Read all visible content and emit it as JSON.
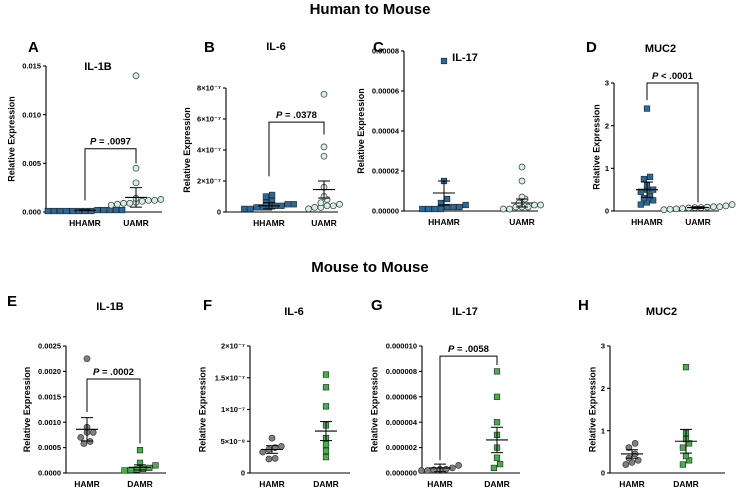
{
  "sections": [
    {
      "title": "Human to Mouse"
    },
    {
      "title": "Mouse to Mouse"
    }
  ],
  "colors": {
    "blue": "#2a6a9a",
    "mint": "#d4f0e6",
    "gray": "#808080",
    "green": "#44b04a",
    "mean_line": "#000000"
  },
  "chart_data": [
    {
      "type": "scatter",
      "panel": "A",
      "title": "IL-1B",
      "ylabel": "Relative Expression",
      "ylim": [
        0,
        0.015
      ],
      "yticks": [
        0,
        0.005,
        0.01,
        0.015
      ],
      "ytick_labels": [
        "0.000",
        "0.005",
        "0.010",
        "0.015"
      ],
      "categories": [
        "HHAMR",
        "UAMR"
      ],
      "series": [
        {
          "name": "HHAMR",
          "marker": "square",
          "color": "#2a6a9a",
          "values": [
            0.0001,
            0.0001,
            0.0002,
            0.0001,
            0.0002,
            0.0001,
            0.0002,
            0.0001,
            0.0001,
            0.0002,
            0.0001,
            0.0002,
            0.0001
          ],
          "mean": 0.00018,
          "sem": 4e-05
        },
        {
          "name": "UAMR",
          "marker": "circle",
          "color": "#d4f0e6",
          "values": [
            0.014,
            0.0045,
            0.003,
            0.0012,
            0.0014,
            0.0008,
            0.0009,
            0.001,
            0.0011,
            0.0012,
            0.0013,
            0.0007,
            0.0009
          ],
          "mean": 0.0015,
          "sem": 0.001
        }
      ],
      "annotation": "P = .0097",
      "bracket_y": 0.0065,
      "bracket_left_y": 0.0012,
      "bracket_right_y": 0.005
    },
    {
      "type": "scatter",
      "panel": "B",
      "title": "IL-6",
      "ylabel": "Relative Expression",
      "ylim": [
        0,
        8e-07
      ],
      "yticks": [
        0,
        2e-07,
        4e-07,
        6e-07,
        8e-07
      ],
      "ytick_labels": [
        "0",
        "2×10⁻⁷",
        "4×10⁻⁷",
        "6×10⁻⁷",
        "8×10⁻⁷"
      ],
      "categories": [
        "HHAMR",
        "UAMR"
      ],
      "series": [
        {
          "name": "HHAMR",
          "marker": "square",
          "color": "#2a6a9a",
          "values": [
            1e-07,
            1.1e-07,
            7e-08,
            6e-08,
            5e-08,
            4e-08,
            3e-08,
            4e-08,
            3e-08,
            2e-08,
            3e-08,
            2e-08,
            5e-08
          ],
          "mean": 4e-08,
          "sem": 2e-08
        },
        {
          "name": "UAMR",
          "marker": "circle",
          "color": "#d4f0e6",
          "values": [
            7.6e-07,
            4.2e-07,
            3.6e-07,
            1.6e-07,
            1e-07,
            8e-08,
            6e-08,
            4e-08,
            3e-08,
            2e-08,
            5e-08,
            4e-08,
            3e-08
          ],
          "mean": 1.45e-07,
          "sem": 5.5e-08
        }
      ],
      "annotation": "P = .0378",
      "bracket_y": 5.8e-07,
      "bracket_left_y": 2.3e-07,
      "bracket_right_y": 5e-07
    },
    {
      "type": "scatter",
      "panel": "C",
      "title": "IL-17",
      "ylabel": "Relative Expression",
      "ylim": [
        0,
        8e-05
      ],
      "yticks": [
        0,
        2e-05,
        4e-05,
        6e-05,
        8e-05
      ],
      "ytick_labels": [
        "0.00000",
        "0.00002",
        "0.00004",
        "0.00006",
        "0.00008"
      ],
      "categories": [
        "HHAMR",
        "UAMR"
      ],
      "series": [
        {
          "name": "HHAMR",
          "marker": "square",
          "color": "#2a6a9a",
          "values": [
            7.5e-05,
            1.5e-05,
            6e-06,
            4e-06,
            3e-06,
            2e-06,
            2e-06,
            1e-06,
            1e-06,
            2e-06,
            1e-06,
            1e-06
          ],
          "mean": 9e-06,
          "sem": 6e-06
        },
        {
          "name": "UAMR",
          "marker": "circle",
          "color": "#d4f0e6",
          "values": [
            2.2e-05,
            1.5e-05,
            7e-06,
            6e-06,
            4e-06,
            3e-06,
            2e-06,
            2e-06,
            1e-06,
            3e-06,
            2e-06,
            1e-06
          ],
          "mean": 4e-06,
          "sem": 2e-06
        }
      ]
    },
    {
      "type": "scatter",
      "panel": "D",
      "title": "MUC2",
      "ylabel": "Relative Expression",
      "ylim": [
        0,
        3
      ],
      "yticks": [
        0,
        1,
        2,
        3
      ],
      "ytick_labels": [
        "0",
        "1",
        "2",
        "3"
      ],
      "categories": [
        "HHAMR",
        "UAMR"
      ],
      "series": [
        {
          "name": "HHAMR",
          "marker": "square",
          "color": "#2a6a9a",
          "values": [
            2.4,
            0.8,
            0.75,
            0.6,
            0.5,
            0.45,
            0.35,
            0.3,
            0.25,
            0.2,
            0.15,
            0.5
          ],
          "mean": 0.5,
          "sem": 0.18
        },
        {
          "name": "UAMR",
          "marker": "circle",
          "color": "#d4f0e6",
          "values": [
            0.15,
            0.12,
            0.1,
            0.09,
            0.08,
            0.07,
            0.06,
            0.05,
            0.04,
            0.03,
            0.1,
            0.08
          ],
          "mean": 0.08,
          "sem": 0.02
        }
      ],
      "annotation": "P < .0001",
      "bracket_y": 3.0,
      "bracket_left_y": 2.6,
      "bracket_right_y": 0.2
    },
    {
      "type": "scatter",
      "panel": "E",
      "title": "IL-1B",
      "ylabel": "Relative Expression",
      "ylim": [
        0,
        0.0025
      ],
      "yticks": [
        0,
        0.0005,
        0.001,
        0.0015,
        0.002,
        0.0025
      ],
      "ytick_labels": [
        "0.0000",
        "0.0005",
        "0.0010",
        "0.0015",
        "0.0020",
        "0.0025"
      ],
      "categories": [
        "HAMR",
        "DAMR"
      ],
      "series": [
        {
          "name": "HAMR",
          "marker": "circle",
          "color": "#808080",
          "values": [
            0.00225,
            0.0009,
            0.0008,
            0.0008,
            0.0007,
            0.00062,
            0.00058
          ],
          "mean": 0.00086,
          "sem": 0.00023
        },
        {
          "name": "DAMR",
          "marker": "square",
          "color": "#44b04a",
          "values": [
            0.00045,
            0.0002,
            0.00015,
            0.0001,
            8e-05,
            7e-05,
            6e-05,
            5e-05
          ],
          "mean": 0.00011,
          "sem": 5e-05
        }
      ],
      "annotation": "P = .0002",
      "bracket_y": 0.00185,
      "bracket_left_y": 0.0012,
      "bracket_right_y": 0.00058
    },
    {
      "type": "scatter",
      "panel": "F",
      "title": "IL-6",
      "ylabel": "Relative Expression",
      "ylim": [
        0,
        2e-07
      ],
      "yticks": [
        0,
        5e-08,
        1e-07,
        1.5e-07,
        2e-07
      ],
      "ytick_labels": [
        "0",
        "5×10⁻⁸",
        "1×10⁻⁷",
        "1.5×10⁻⁷",
        "2×10⁻⁷"
      ],
      "categories": [
        "HAMR",
        "DAMR"
      ],
      "series": [
        {
          "name": "HAMR",
          "marker": "circle",
          "color": "#808080",
          "values": [
            5.5e-08,
            4.2e-08,
            4e-08,
            3.7e-08,
            3.3e-08,
            2.3e-08,
            2.2e-08
          ],
          "mean": 3.7e-08,
          "sem": 6e-09
        },
        {
          "name": "DAMR",
          "marker": "square",
          "color": "#44b04a",
          "values": [
            1.55e-07,
            1.35e-07,
            1.05e-07,
            7.5e-08,
            5.5e-08,
            4.5e-08,
            3.5e-08,
            2.5e-08
          ],
          "mean": 6.6e-08,
          "sem": 1.5e-08
        }
      ]
    },
    {
      "type": "scatter",
      "panel": "G",
      "title": "IL-17",
      "ylabel": "Relative Expression",
      "ylim": [
        0,
        1e-05
      ],
      "yticks": [
        0,
        2e-06,
        4e-06,
        6e-06,
        8e-06,
        1e-05
      ],
      "ytick_labels": [
        "0.000000",
        "0.000002",
        "0.000004",
        "0.000006",
        "0.000008",
        "0.000010"
      ],
      "categories": [
        "HAMR",
        "DAMR"
      ],
      "series": [
        {
          "name": "HAMR",
          "marker": "circle",
          "color": "#808080",
          "values": [
            6e-07,
            4e-07,
            3e-07,
            2.5e-07,
            2e-07,
            3e-07,
            2e-07
          ],
          "mean": 4e-07,
          "sem": 3e-07
        },
        {
          "name": "DAMR",
          "marker": "square",
          "color": "#44b04a",
          "values": [
            8e-06,
            6e-06,
            4e-06,
            3e-06,
            2e-06,
            1.2e-06,
            7e-07,
            4e-07
          ],
          "mean": 2.6e-06,
          "sem": 1e-06
        }
      ],
      "annotation": "P = .0058",
      "bracket_y": 9.2e-06,
      "bracket_left_y": 1e-06,
      "bracket_right_y": 8.5e-06
    },
    {
      "type": "scatter",
      "panel": "H",
      "title": "MUC2",
      "ylabel": "Relative Expression",
      "ylim": [
        0,
        3
      ],
      "yticks": [
        0,
        1,
        2,
        3
      ],
      "ytick_labels": [
        "0",
        "1",
        "2",
        "3"
      ],
      "categories": [
        "HAMR",
        "DAMR"
      ],
      "series": [
        {
          "name": "HAMR",
          "marker": "circle",
          "color": "#808080",
          "values": [
            0.7,
            0.6,
            0.45,
            0.35,
            0.3,
            0.25,
            0.2
          ],
          "mean": 0.45,
          "sem": 0.1
        },
        {
          "name": "DAMR",
          "marker": "square",
          "color": "#44b04a",
          "values": [
            2.5,
            0.95,
            0.8,
            0.7,
            0.6,
            0.4,
            0.3,
            0.2
          ],
          "mean": 0.75,
          "sem": 0.28
        }
      ]
    }
  ]
}
